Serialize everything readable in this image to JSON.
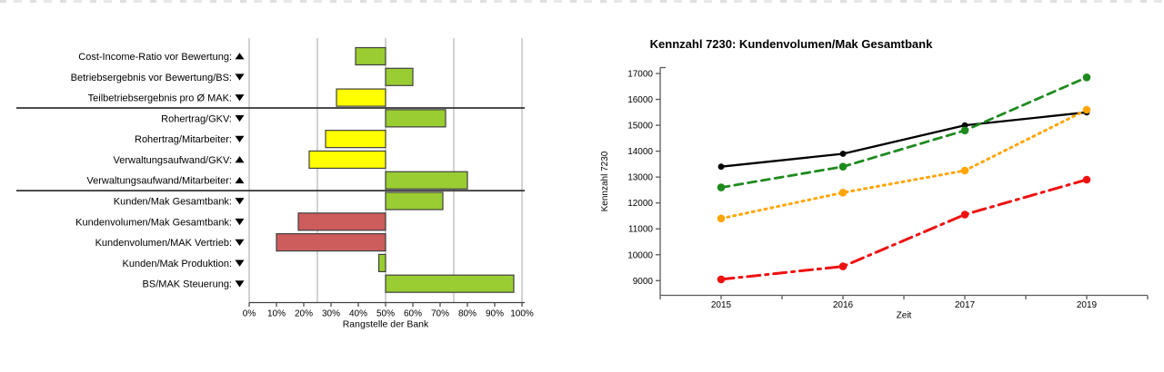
{
  "page": {
    "background": "#ffffff"
  },
  "chart_data": [
    {
      "id": "rank-bar-chart",
      "type": "bar",
      "orientation": "horizontal",
      "xlabel": "Rangstelle der Bank",
      "xlim": [
        0,
        100
      ],
      "x_ticks": [
        "0%",
        "10%",
        "20%",
        "30%",
        "40%",
        "50%",
        "60%",
        "70%",
        "80%",
        "90%",
        "100%"
      ],
      "gridlines_pct": [
        0,
        25,
        50,
        75,
        100
      ],
      "baseline_pct": 50,
      "group_separators_after_row": [
        2,
        6
      ],
      "colors": {
        "green": "#9ACD32",
        "yellow": "#FFFF00",
        "red": "#CD5C5C",
        "bar_border": "#3F3F3F",
        "grid": "#B3B3B3",
        "separator": "#333333",
        "axis": "#404040"
      },
      "rows": [
        {
          "label": "Cost-Income-Ratio vor Bewertung:",
          "arrow": "up",
          "start_pct": 39,
          "end_pct": 50,
          "color": "green"
        },
        {
          "label": "Betriebsergebnis vor Bewertung/BS:",
          "arrow": "down",
          "start_pct": 50,
          "end_pct": 60,
          "color": "green"
        },
        {
          "label": "Teilbetriebsergebnis pro Ø MAK:",
          "arrow": "down",
          "start_pct": 32,
          "end_pct": 50,
          "color": "yellow"
        },
        {
          "label": "Rohertrag/GKV:",
          "arrow": "down",
          "start_pct": 50,
          "end_pct": 72,
          "color": "green"
        },
        {
          "label": "Rohertrag/Mitarbeiter:",
          "arrow": "down",
          "start_pct": 28,
          "end_pct": 50,
          "color": "yellow"
        },
        {
          "label": "Verwaltungsaufwand/GKV:",
          "arrow": "up",
          "start_pct": 22,
          "end_pct": 50,
          "color": "yellow"
        },
        {
          "label": "Verwaltungsaufwand/Mitarbeiter:",
          "arrow": "up",
          "start_pct": 50,
          "end_pct": 80,
          "color": "green"
        },
        {
          "label": "Kunden/Mak Gesamtbank:",
          "arrow": "down",
          "start_pct": 50,
          "end_pct": 71,
          "color": "green"
        },
        {
          "label": "Kundenvolumen/Mak Gesamtbank:",
          "arrow": "down",
          "start_pct": 18,
          "end_pct": 50,
          "color": "red"
        },
        {
          "label": "Kundenvolumen/MAK Vertrieb:",
          "arrow": "down",
          "start_pct": 10,
          "end_pct": 50,
          "color": "red"
        },
        {
          "label": "Kunden/Mak Produktion:",
          "arrow": "down",
          "start_pct": 47.5,
          "end_pct": 50,
          "color": "green"
        },
        {
          "label": "BS/MAK Steuerung:",
          "arrow": "down",
          "start_pct": 50,
          "end_pct": 97,
          "color": "green"
        }
      ]
    },
    {
      "id": "kennzahl-line-chart",
      "type": "line",
      "title": "Kennzahl 7230: Kundenvolumen/Mak Gesamtbank",
      "xlabel": "Zeit",
      "ylabel": "Kennzahl 7230",
      "x_categories": [
        "2015",
        "2016",
        "2017",
        "2019"
      ],
      "ylim": [
        9000,
        17000
      ],
      "y_ticks": [
        9000,
        10000,
        11000,
        12000,
        13000,
        14000,
        15000,
        16000,
        17000
      ],
      "legend": "none",
      "axis_color": "#595959",
      "series": [
        {
          "name": "gesamtbank-schwarz",
          "color": "#000000",
          "style": "solid",
          "values": [
            13400,
            13900,
            15000,
            15500
          ]
        },
        {
          "name": "vergleich-gruen",
          "color": "#1E8A1E",
          "style": "dashed",
          "values": [
            12600,
            13400,
            14800,
            16850
          ]
        },
        {
          "name": "vergleich-orange",
          "color": "#FFA500",
          "style": "dotted",
          "values": [
            11400,
            12400,
            13250,
            15600
          ]
        },
        {
          "name": "vergleich-rot",
          "color": "#EE1111",
          "style": "dashdot",
          "values": [
            9050,
            9550,
            11550,
            12900
          ]
        }
      ]
    }
  ]
}
